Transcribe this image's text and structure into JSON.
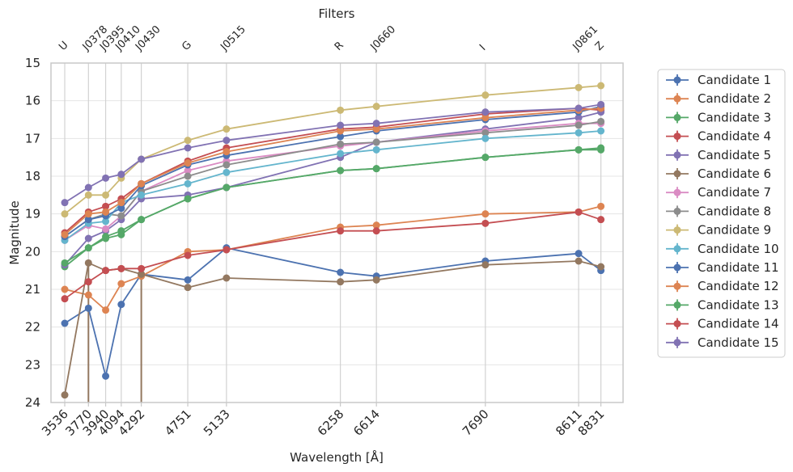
{
  "chart_data": {
    "type": "line",
    "top_axis_title": "Filters",
    "xlabel": "Wavelength [Å]",
    "ylabel": "Magnitude",
    "x": [
      3536,
      3770,
      3940,
      4094,
      4292,
      4751,
      5133,
      6258,
      6614,
      7690,
      8611,
      8831
    ],
    "x_tick_labels": [
      "3536",
      "3770",
      "3940",
      "4094",
      "4292",
      "4751",
      "5133",
      "6258",
      "6614",
      "7690",
      "8611",
      "8831"
    ],
    "filters": [
      "U",
      "J0378",
      "J0395",
      "J0410",
      "J0430",
      "G",
      "J0515",
      "R",
      "J0660",
      "I",
      "J0861",
      "Z"
    ],
    "ylim": [
      24,
      15
    ],
    "y_inverted": true,
    "y_ticks": [
      "15",
      "16",
      "17",
      "18",
      "19",
      "20",
      "21",
      "22",
      "23",
      "24"
    ],
    "grid": true,
    "legend_position": "outside-right",
    "series": [
      {
        "name": "Candidate 1",
        "color": "#4c72b0",
        "values": [
          21.9,
          21.5,
          23.3,
          21.4,
          20.6,
          20.75,
          19.9,
          20.55,
          20.65,
          20.25,
          20.05,
          20.5
        ]
      },
      {
        "name": "Candidate 2",
        "color": "#dd8452",
        "values": [
          21.0,
          21.15,
          21.55,
          20.85,
          20.65,
          20.0,
          19.95,
          19.35,
          19.3,
          19.0,
          18.95,
          18.8
        ]
      },
      {
        "name": "Candidate 3",
        "color": "#55a868",
        "values": [
          20.4,
          19.9,
          19.65,
          19.55,
          19.15,
          18.6,
          18.3,
          17.85,
          17.8,
          17.5,
          17.3,
          17.3
        ]
      },
      {
        "name": "Candidate 4",
        "color": "#c44e52",
        "values": [
          19.5,
          18.95,
          18.8,
          18.6,
          18.2,
          17.6,
          17.25,
          16.75,
          16.7,
          16.35,
          16.2,
          16.25
        ]
      },
      {
        "name": "Candidate 5",
        "color": "#8172b3",
        "values": [
          20.35,
          19.65,
          19.45,
          19.15,
          18.6,
          18.5,
          18.3,
          17.5,
          17.1,
          16.75,
          16.45,
          16.3
        ]
      },
      {
        "name": "Candidate 6",
        "color": "#937860",
        "values": [
          23.8,
          20.3,
          20.5,
          20.45,
          20.6,
          20.95,
          20.7,
          20.8,
          20.75,
          20.35,
          20.25,
          20.4
        ]
      },
      {
        "name": "Candidate 7",
        "color": "#da8bc3",
        "values": [
          19.7,
          19.3,
          19.4,
          19.05,
          18.4,
          17.85,
          17.6,
          17.2,
          17.1,
          16.8,
          16.6,
          16.6
        ]
      },
      {
        "name": "Candidate 8",
        "color": "#8c8c8c",
        "values": [
          19.6,
          19.15,
          19.0,
          19.05,
          18.4,
          18.0,
          17.7,
          17.15,
          17.1,
          16.85,
          16.65,
          16.55
        ]
      },
      {
        "name": "Candidate 9",
        "color": "#ccb974",
        "values": [
          19.0,
          18.5,
          18.5,
          18.05,
          17.55,
          17.05,
          16.75,
          16.25,
          16.15,
          15.85,
          15.65,
          15.6
        ]
      },
      {
        "name": "Candidate 10",
        "color": "#64b5cd",
        "values": [
          19.7,
          19.25,
          19.2,
          18.7,
          18.5,
          18.2,
          17.9,
          17.4,
          17.3,
          17.0,
          16.85,
          16.8
        ]
      },
      {
        "name": "Candidate 11",
        "color": "#4c72b0",
        "values": [
          19.6,
          19.15,
          19.05,
          18.85,
          18.25,
          17.7,
          17.45,
          16.95,
          16.8,
          16.5,
          16.3,
          16.15
        ]
      },
      {
        "name": "Candidate 12",
        "color": "#dd8452",
        "values": [
          19.55,
          19.0,
          18.95,
          18.7,
          18.2,
          17.65,
          17.35,
          16.8,
          16.75,
          16.45,
          16.25,
          16.2
        ]
      },
      {
        "name": "Candidate 13",
        "color": "#55a868",
        "values": [
          20.3,
          19.9,
          19.6,
          19.45,
          19.15,
          18.6,
          18.3,
          17.85,
          17.8,
          17.5,
          17.3,
          17.25
        ]
      },
      {
        "name": "Candidate 14",
        "color": "#c44e52",
        "values": [
          21.25,
          20.8,
          20.5,
          20.45,
          20.45,
          20.1,
          19.95,
          19.45,
          19.45,
          19.25,
          18.95,
          19.15
        ]
      },
      {
        "name": "Candidate 15",
        "color": "#8172b3",
        "values": [
          18.7,
          18.3,
          18.05,
          17.95,
          17.55,
          17.25,
          17.05,
          16.65,
          16.6,
          16.3,
          16.2,
          16.1
        ]
      }
    ],
    "error_bars": [
      {
        "series": "Candidate 6",
        "x": 3770,
        "y_high": 24.0
      },
      {
        "series": "Candidate 6",
        "x": 4292,
        "y_high": 24.0
      }
    ]
  }
}
